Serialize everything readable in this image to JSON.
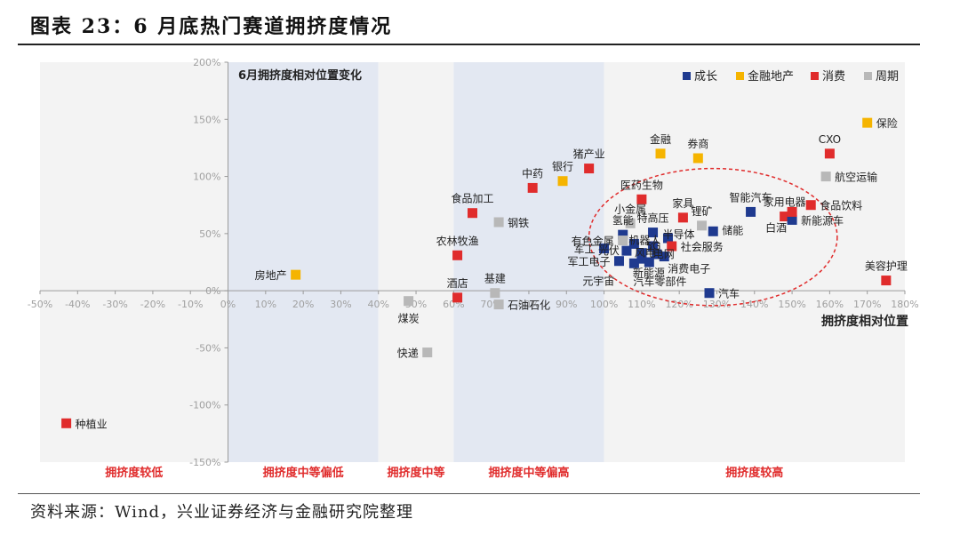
{
  "figure_title": "图表 23：6 月底热门赛道拥挤度情况",
  "source_note": "资料来源：Wind，兴业证券经济与金融研究院整理",
  "colors": {
    "成长": "#1f3a8f",
    "金融地产": "#f5b400",
    "消费": "#e02c2c",
    "周期": "#b8b8b8",
    "band_light": "#f3f3f3",
    "band_blue": "#e3e8f2",
    "circle": "#e02c2c",
    "zone_label": "#e02c2c"
  },
  "chart_data": {
    "type": "scatter",
    "title": "6月拥挤度相对位置变化",
    "xlabel": "拥挤度相对位置",
    "ylabel": "",
    "xlim": [
      -50,
      180
    ],
    "ylim": [
      -150,
      200
    ],
    "x_ticks": [
      -50,
      -40,
      -30,
      -20,
      -10,
      0,
      10,
      20,
      30,
      40,
      50,
      60,
      70,
      80,
      90,
      100,
      110,
      120,
      130,
      140,
      150,
      160,
      170,
      180
    ],
    "y_ticks": [
      -150,
      -100,
      -50,
      0,
      50,
      100,
      150,
      200
    ],
    "tick_format": "percent",
    "legend": {
      "position": "top-right",
      "entries": [
        {
          "name": "成长",
          "color_key": "成长"
        },
        {
          "name": "金融地产",
          "color_key": "金融地产"
        },
        {
          "name": "消费",
          "color_key": "消费"
        },
        {
          "name": "周期",
          "color_key": "周期"
        }
      ]
    },
    "zones": [
      {
        "label": "拥挤度较低",
        "x_range": [
          -50,
          0
        ],
        "shade": "band_light"
      },
      {
        "label": "拥挤度中等偏低",
        "x_range": [
          0,
          40
        ],
        "shade": "band_blue"
      },
      {
        "label": "拥挤度中等",
        "x_range": [
          40,
          60
        ],
        "shade": "band_light"
      },
      {
        "label": "拥挤度中等偏高",
        "x_range": [
          60,
          100
        ],
        "shade": "band_blue"
      },
      {
        "label": "拥挤度较高",
        "x_range": [
          100,
          180
        ],
        "shade": "band_light"
      }
    ],
    "highlight_ellipse": {
      "center": [
        129,
        47
      ],
      "radius": [
        33,
        60
      ]
    },
    "points": [
      {
        "label": "种植业",
        "group": "消费",
        "x": -43,
        "y": -116,
        "label_pos": "right"
      },
      {
        "label": "房地产",
        "group": "金融地产",
        "x": 18,
        "y": 14,
        "label_pos": "left"
      },
      {
        "label": "煤炭",
        "group": "周期",
        "x": 48,
        "y": -9,
        "label_pos": "below"
      },
      {
        "label": "快递",
        "group": "周期",
        "x": 53,
        "y": -54,
        "label_pos": "left"
      },
      {
        "label": "酒店",
        "group": "消费",
        "x": 61,
        "y": -6,
        "label_pos": "above"
      },
      {
        "label": "基建",
        "group": "周期",
        "x": 71,
        "y": -2,
        "label_pos": "above"
      },
      {
        "label": "石油石化",
        "group": "周期",
        "x": 72,
        "y": -12,
        "label_pos": "right"
      },
      {
        "label": "农林牧渔",
        "group": "消费",
        "x": 61,
        "y": 31,
        "label_pos": "above"
      },
      {
        "label": "食品加工",
        "group": "消费",
        "x": 65,
        "y": 68,
        "label_pos": "above"
      },
      {
        "label": "钢铁",
        "group": "周期",
        "x": 72,
        "y": 60,
        "label_pos": "right"
      },
      {
        "label": "中药",
        "group": "消费",
        "x": 81,
        "y": 90,
        "label_pos": "above"
      },
      {
        "label": "银行",
        "group": "金融地产",
        "x": 89,
        "y": 96,
        "label_pos": "above"
      },
      {
        "label": "猪产业",
        "group": "消费",
        "x": 96,
        "y": 107,
        "label_pos": "above"
      },
      {
        "label": "金融",
        "group": "金融地产",
        "x": 115,
        "y": 120,
        "label_pos": "above"
      },
      {
        "label": "券商",
        "group": "金融地产",
        "x": 125,
        "y": 116,
        "label_pos": "above"
      },
      {
        "label": "医药生物",
        "group": "消费",
        "x": 110,
        "y": 80,
        "label_pos": "above"
      },
      {
        "label": "家具",
        "group": "消费",
        "x": 121,
        "y": 64,
        "label_pos": "above"
      },
      {
        "label": "锂矿",
        "group": "周期",
        "x": 126,
        "y": 57,
        "label_pos": "above"
      },
      {
        "label": "智能汽车",
        "group": "成长",
        "x": 139,
        "y": 69,
        "label_pos": "above"
      },
      {
        "label": "家用电器",
        "group": "消费",
        "x": 148,
        "y": 65,
        "label_pos": "above"
      },
      {
        "label": "CXO",
        "group": "消费",
        "x": 160,
        "y": 120,
        "label_pos": "above"
      },
      {
        "label": "保险",
        "group": "金融地产",
        "x": 170,
        "y": 147,
        "label_pos": "right"
      },
      {
        "label": "航空运输",
        "group": "周期",
        "x": 159,
        "y": 100,
        "label_pos": "right"
      },
      {
        "label": "食品饮料",
        "group": "消费",
        "x": 155,
        "y": 75,
        "label_pos": "right"
      },
      {
        "label": "新能源车",
        "group": "成长",
        "x": 150,
        "y": 62,
        "label_pos": "right"
      },
      {
        "label": "白酒",
        "group": "消费",
        "x": 150,
        "y": 69,
        "label_pos": "custom"
      },
      {
        "label": "储能",
        "group": "成长",
        "x": 129,
        "y": 52,
        "label_pos": "custom"
      },
      {
        "label": "美容护理",
        "group": "消费",
        "x": 175,
        "y": 9,
        "label_pos": "above"
      },
      {
        "label": "汽车",
        "group": "成长",
        "x": 128,
        "y": -2,
        "label_pos": "right"
      },
      {
        "label": "小金属",
        "group": "周期",
        "x": 107,
        "y": 59,
        "label_pos": "above"
      },
      {
        "label": "氢能",
        "group": "成长",
        "x": 105,
        "y": 49,
        "label_pos": "above"
      },
      {
        "label": "特高压",
        "group": "成长",
        "x": 113,
        "y": 51,
        "label_pos": "above"
      },
      {
        "label": "半导体",
        "group": "成长",
        "x": 117,
        "y": 46,
        "label_pos": "custom"
      },
      {
        "label": "有色金属",
        "group": "周期",
        "x": 105,
        "y": 44,
        "label_pos": "left"
      },
      {
        "label": "机器人",
        "group": "成长",
        "x": 108,
        "y": 41,
        "label_pos": "custom"
      },
      {
        "label": "5G",
        "group": "成长",
        "x": 113,
        "y": 39,
        "label_pos": "custom"
      },
      {
        "label": "社会服务",
        "group": "消费",
        "x": 118,
        "y": 39,
        "label_pos": "right"
      },
      {
        "label": "军工",
        "group": "成长",
        "x": 100,
        "y": 37,
        "label_pos": "left"
      },
      {
        "label": "光伏",
        "group": "成长",
        "x": 106,
        "y": 35,
        "label_pos": "custom"
      },
      {
        "label": "风电",
        "group": "成长",
        "x": 110,
        "y": 33,
        "label_pos": "custom"
      },
      {
        "label": "电网",
        "group": "成长",
        "x": 114,
        "y": 32,
        "label_pos": "custom"
      },
      {
        "label": "军工电子",
        "group": "成长",
        "x": 104,
        "y": 26,
        "label_pos": "left"
      },
      {
        "label": "新能源",
        "group": "成长",
        "x": 110,
        "y": 28,
        "label_pos": "custom"
      },
      {
        "label": "消费电子",
        "group": "成长",
        "x": 116,
        "y": 30,
        "label_pos": "custom"
      },
      {
        "label": "元宇宙",
        "group": "成长",
        "x": 108,
        "y": 24,
        "label_pos": "custom"
      },
      {
        "label": "汽车零部件",
        "group": "成长",
        "x": 112,
        "y": 25,
        "label_pos": "custom"
      }
    ]
  }
}
